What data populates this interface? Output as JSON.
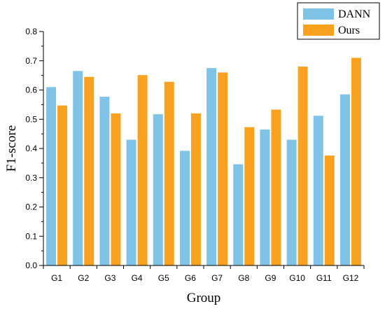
{
  "chart_data": {
    "type": "bar",
    "categories": [
      "G1",
      "G2",
      "G3",
      "G4",
      "G5",
      "G6",
      "G7",
      "G8",
      "G9",
      "G10",
      "G11",
      "G12"
    ],
    "series": [
      {
        "name": "DANN",
        "color": "#7fc3e6",
        "values": [
          0.61,
          0.665,
          0.577,
          0.43,
          0.517,
          0.392,
          0.675,
          0.346,
          0.465,
          0.43,
          0.512,
          0.585
        ]
      },
      {
        "name": "Ours",
        "color": "#f9a21f",
        "values": [
          0.547,
          0.645,
          0.52,
          0.651,
          0.628,
          0.52,
          0.66,
          0.473,
          0.533,
          0.68,
          0.376,
          0.71
        ]
      }
    ],
    "xlabel": "Group",
    "ylabel": "F1-score",
    "ylim": [
      0,
      0.8
    ],
    "yticks": [
      "0.0",
      "0.1",
      "0.2",
      "0.3",
      "0.4",
      "0.5",
      "0.6",
      "0.7",
      "0.8"
    ],
    "legend_position": "top-right",
    "grid": false
  }
}
